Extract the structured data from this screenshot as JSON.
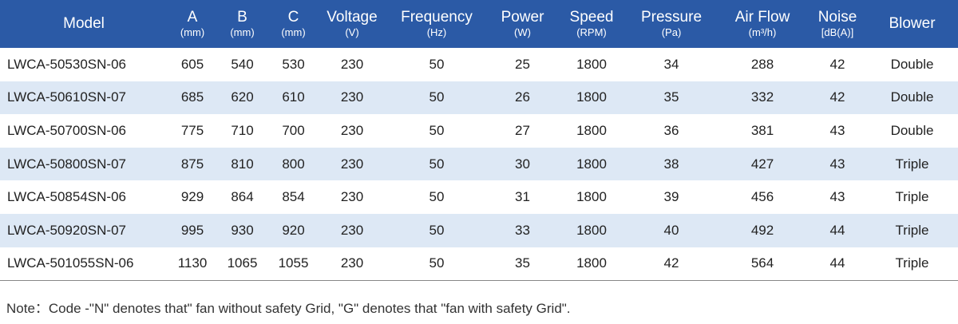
{
  "table": {
    "headers": [
      {
        "name": "Model"
      },
      {
        "name": "A",
        "unit": "(mm)"
      },
      {
        "name": "B",
        "unit": "(mm)"
      },
      {
        "name": "C",
        "unit": "(mm)"
      },
      {
        "name": "Voltage",
        "unit": "(V)"
      },
      {
        "name": "Frequency",
        "unit": "(Hz)"
      },
      {
        "name": "Power",
        "unit": "(W)"
      },
      {
        "name": "Speed",
        "unit": "(RPM)"
      },
      {
        "name": "Pressure",
        "unit": "(Pa)"
      },
      {
        "name": "Air Flow",
        "unit": "(m³/h)"
      },
      {
        "name": "Noise",
        "unit": "[dB(A)]"
      },
      {
        "name": "Blower"
      }
    ],
    "rows": [
      [
        "LWCA-50530SN-06",
        605,
        540,
        530,
        230,
        50,
        25,
        1800,
        34,
        288,
        42,
        "Double"
      ],
      [
        "LWCA-50610SN-07",
        685,
        620,
        610,
        230,
        50,
        26,
        1800,
        35,
        332,
        42,
        "Double"
      ],
      [
        "LWCA-50700SN-06",
        775,
        710,
        700,
        230,
        50,
        27,
        1800,
        36,
        381,
        43,
        "Double"
      ],
      [
        "LWCA-50800SN-07",
        875,
        810,
        800,
        230,
        50,
        30,
        1800,
        38,
        427,
        43,
        "Triple"
      ],
      [
        "LWCA-50854SN-06",
        929,
        864,
        854,
        230,
        50,
        31,
        1800,
        39,
        456,
        43,
        "Triple"
      ],
      [
        "LWCA-50920SN-07",
        995,
        930,
        920,
        230,
        50,
        33,
        1800,
        40,
        492,
        44,
        "Triple"
      ],
      [
        "LWCA-501055SN-06",
        1130,
        1065,
        1055,
        230,
        50,
        35,
        1800,
        42,
        564,
        44,
        "Triple"
      ]
    ]
  },
  "note": "Note：Code -\"N\" denotes that\" fan without safety Grid, \"G\" denotes that \"fan with safety Grid\"."
}
